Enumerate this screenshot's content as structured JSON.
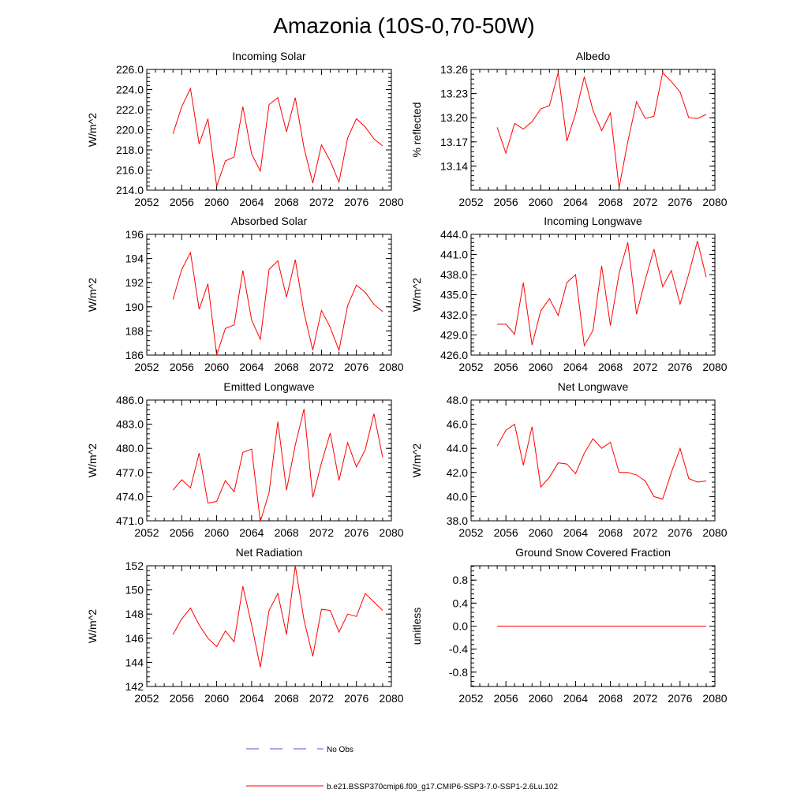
{
  "title": "Amazonia (10S-0,70-50W)",
  "legend": {
    "items": [
      {
        "label": "No Obs",
        "color": "#5555cc",
        "style": "dashed"
      },
      {
        "label": "b.e21.BSSP370cmip6.f09_g17.CMIP6-SSP3-7.0-SSP1-2.6Lu.102",
        "color": "#ff0000",
        "style": "solid"
      }
    ]
  },
  "chart_data": [
    {
      "type": "line",
      "title": "Incoming Solar",
      "ylabel": "W/m^2",
      "xlim": [
        2052,
        2080
      ],
      "ylim": [
        214.0,
        226.0
      ],
      "xticks": [
        "2052",
        "2056",
        "2060",
        "2064",
        "2068",
        "2072",
        "2076",
        "2080"
      ],
      "yticks": [
        "214.0",
        "216.0",
        "218.0",
        "220.0",
        "222.0",
        "224.0",
        "226.0"
      ],
      "x": [
        2055,
        2056,
        2057,
        2058,
        2059,
        2060,
        2061,
        2062,
        2063,
        2064,
        2065,
        2066,
        2067,
        2068,
        2069,
        2070,
        2071,
        2072,
        2073,
        2074,
        2075,
        2076,
        2077,
        2078,
        2079
      ],
      "series": [
        {
          "values": [
            219.6,
            222.3,
            224.1,
            218.6,
            221.1,
            214.4,
            216.9,
            217.3,
            222.3,
            217.6,
            215.9,
            222.5,
            223.2,
            219.8,
            223.2,
            218.2,
            214.7,
            218.5,
            216.9,
            214.8,
            219.2,
            221.1,
            220.3,
            219.1,
            218.4
          ]
        }
      ]
    },
    {
      "type": "line",
      "title": "Albedo",
      "ylabel": "% reflected",
      "xlim": [
        2052,
        2080
      ],
      "ylim": [
        13.11,
        13.26
      ],
      "xticks": [
        "2052",
        "2056",
        "2060",
        "2064",
        "2068",
        "2072",
        "2076",
        "2080"
      ],
      "yticks": [
        "13.14",
        "13.17",
        "13.20",
        "13.23",
        "13.26"
      ],
      "ytick_values": [
        13.14,
        13.17,
        13.2,
        13.23,
        13.26
      ],
      "x": [
        2055,
        2056,
        2057,
        2058,
        2059,
        2060,
        2061,
        2062,
        2063,
        2064,
        2065,
        2066,
        2067,
        2068,
        2069,
        2070,
        2071,
        2072,
        2073,
        2074,
        2075,
        2076,
        2077,
        2078,
        2079
      ],
      "series": [
        {
          "values": [
            13.188,
            13.156,
            13.193,
            13.186,
            13.195,
            13.211,
            13.215,
            13.256,
            13.171,
            13.205,
            13.251,
            13.209,
            13.184,
            13.206,
            13.113,
            13.17,
            13.22,
            13.199,
            13.202,
            13.256,
            13.245,
            13.232,
            13.2,
            13.199,
            13.204
          ]
        }
      ]
    },
    {
      "type": "line",
      "title": "Absorbed Solar",
      "ylabel": "W/m^2",
      "xlim": [
        2052,
        2080
      ],
      "ylim": [
        186,
        196
      ],
      "xticks": [
        "2052",
        "2056",
        "2060",
        "2064",
        "2068",
        "2072",
        "2076",
        "2080"
      ],
      "yticks": [
        "186",
        "188",
        "190",
        "192",
        "194",
        "196"
      ],
      "x": [
        2055,
        2056,
        2057,
        2058,
        2059,
        2060,
        2061,
        2062,
        2063,
        2064,
        2065,
        2066,
        2067,
        2068,
        2069,
        2070,
        2071,
        2072,
        2073,
        2074,
        2075,
        2076,
        2077,
        2078,
        2079
      ],
      "series": [
        {
          "values": [
            190.6,
            193.1,
            194.5,
            189.8,
            191.9,
            186.0,
            188.2,
            188.5,
            193.0,
            188.9,
            187.3,
            193.1,
            193.8,
            190.8,
            193.9,
            189.5,
            186.4,
            189.7,
            188.3,
            186.4,
            190.1,
            191.8,
            191.2,
            190.2,
            189.6
          ]
        }
      ]
    },
    {
      "type": "line",
      "title": "Incoming Longwave",
      "ylabel": "W/m^2",
      "xlim": [
        2052,
        2080
      ],
      "ylim": [
        426.0,
        444.0
      ],
      "xticks": [
        "2052",
        "2056",
        "2060",
        "2064",
        "2068",
        "2072",
        "2076",
        "2080"
      ],
      "yticks": [
        "426.0",
        "429.0",
        "432.0",
        "435.0",
        "438.0",
        "441.0",
        "444.0"
      ],
      "x": [
        2055,
        2056,
        2057,
        2058,
        2059,
        2060,
        2061,
        2062,
        2063,
        2064,
        2065,
        2066,
        2067,
        2068,
        2069,
        2070,
        2071,
        2072,
        2073,
        2074,
        2075,
        2076,
        2077,
        2078,
        2079
      ],
      "series": [
        {
          "values": [
            430.6,
            430.6,
            429.1,
            436.8,
            427.5,
            432.6,
            434.4,
            431.9,
            436.8,
            438.0,
            427.4,
            429.7,
            439.3,
            430.4,
            438.2,
            442.8,
            432.1,
            437.2,
            441.8,
            436.2,
            438.6,
            433.6,
            438.1,
            443.0,
            437.6
          ]
        }
      ]
    },
    {
      "type": "line",
      "title": "Emitted Longwave",
      "ylabel": "W/m^2",
      "xlim": [
        2052,
        2080
      ],
      "ylim": [
        471.0,
        486.0
      ],
      "xticks": [
        "2052",
        "2056",
        "2060",
        "2064",
        "2068",
        "2072",
        "2076",
        "2080"
      ],
      "yticks": [
        "471.0",
        "474.0",
        "477.0",
        "480.0",
        "483.0",
        "486.0"
      ],
      "x": [
        2055,
        2056,
        2057,
        2058,
        2059,
        2060,
        2061,
        2062,
        2063,
        2064,
        2065,
        2066,
        2067,
        2068,
        2069,
        2070,
        2071,
        2072,
        2073,
        2074,
        2075,
        2076,
        2077,
        2078,
        2079
      ],
      "series": [
        {
          "values": [
            474.8,
            476.1,
            475.1,
            479.4,
            473.2,
            473.4,
            476.0,
            474.6,
            479.5,
            479.9,
            470.9,
            474.5,
            483.3,
            474.8,
            480.4,
            484.9,
            473.9,
            478.2,
            481.9,
            476.0,
            480.7,
            477.7,
            479.8,
            484.3,
            478.9
          ]
        }
      ]
    },
    {
      "type": "line",
      "title": "Net Longwave",
      "ylabel": "W/m^2",
      "xlim": [
        2052,
        2080
      ],
      "ylim": [
        38.0,
        48.0
      ],
      "xticks": [
        "2052",
        "2056",
        "2060",
        "2064",
        "2068",
        "2072",
        "2076",
        "2080"
      ],
      "yticks": [
        "38.0",
        "40.0",
        "42.0",
        "44.0",
        "46.0",
        "48.0"
      ],
      "x": [
        2055,
        2056,
        2057,
        2058,
        2059,
        2060,
        2061,
        2062,
        2063,
        2064,
        2065,
        2066,
        2067,
        2068,
        2069,
        2070,
        2071,
        2072,
        2073,
        2074,
        2075,
        2076,
        2077,
        2078,
        2079
      ],
      "series": [
        {
          "values": [
            44.2,
            45.5,
            46.0,
            42.6,
            45.8,
            40.8,
            41.6,
            42.8,
            42.7,
            41.9,
            43.6,
            44.8,
            44.0,
            44.5,
            42.0,
            42.0,
            41.8,
            41.3,
            40.0,
            39.8,
            42.0,
            44.0,
            41.5,
            41.2,
            41.3
          ]
        }
      ]
    },
    {
      "type": "line",
      "title": "Net Radiation",
      "ylabel": "W/m^2",
      "xlim": [
        2052,
        2080
      ],
      "ylim": [
        142,
        152
      ],
      "xticks": [
        "2052",
        "2056",
        "2060",
        "2064",
        "2068",
        "2072",
        "2076",
        "2080"
      ],
      "yticks": [
        "142",
        "144",
        "146",
        "148",
        "150",
        "152"
      ],
      "x": [
        2055,
        2056,
        2057,
        2058,
        2059,
        2060,
        2061,
        2062,
        2063,
        2064,
        2065,
        2066,
        2067,
        2068,
        2069,
        2070,
        2071,
        2072,
        2073,
        2074,
        2075,
        2076,
        2077,
        2078,
        2079
      ],
      "series": [
        {
          "values": [
            146.3,
            147.6,
            148.5,
            147.1,
            146.0,
            145.3,
            146.6,
            145.7,
            150.3,
            147.1,
            143.6,
            148.3,
            149.7,
            146.3,
            152.0,
            147.5,
            144.5,
            148.4,
            148.3,
            146.5,
            148.0,
            147.8,
            149.7,
            149.0,
            148.3
          ]
        }
      ]
    },
    {
      "type": "line",
      "title": "Ground Snow Covered Fraction",
      "ylabel": "unitless",
      "xlim": [
        2052,
        2080
      ],
      "ylim": [
        -1.05,
        1.05
      ],
      "xticks": [
        "2052",
        "2056",
        "2060",
        "2064",
        "2068",
        "2072",
        "2076",
        "2080"
      ],
      "yticks": [
        "-0.8",
        "-0.4",
        "0.0",
        "0.4",
        "0.8"
      ],
      "ytick_values": [
        -0.8,
        -0.4,
        0.0,
        0.4,
        0.8
      ],
      "x": [
        2055,
        2056,
        2057,
        2058,
        2059,
        2060,
        2061,
        2062,
        2063,
        2064,
        2065,
        2066,
        2067,
        2068,
        2069,
        2070,
        2071,
        2072,
        2073,
        2074,
        2075,
        2076,
        2077,
        2078,
        2079
      ],
      "series": [
        {
          "values": [
            0,
            0,
            0,
            0,
            0,
            0,
            0,
            0,
            0,
            0,
            0,
            0,
            0,
            0,
            0,
            0,
            0,
            0,
            0,
            0,
            0,
            0,
            0,
            0,
            0
          ]
        }
      ]
    }
  ]
}
